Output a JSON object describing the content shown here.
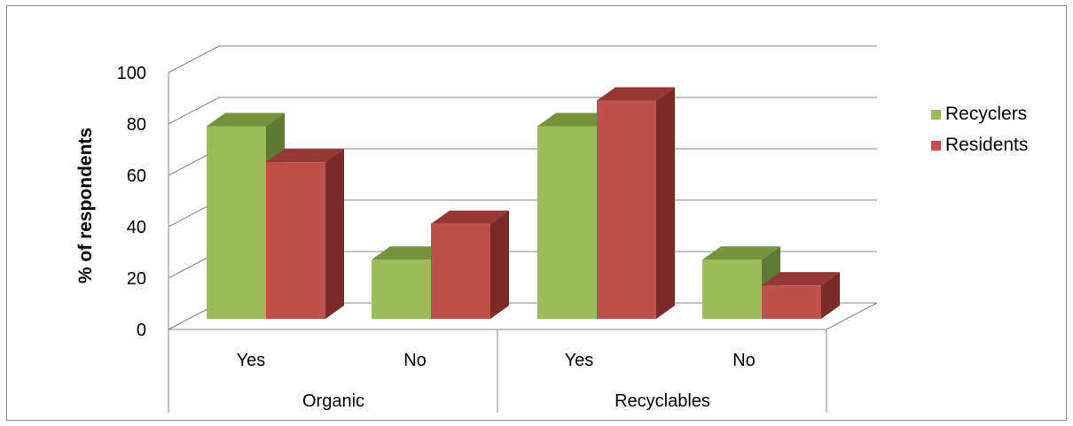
{
  "chart_data": {
    "type": "bar",
    "ylabel": "% of respondents",
    "ylim": [
      0,
      100
    ],
    "yticks": [
      "0",
      "20",
      "40",
      "60",
      "80",
      "100"
    ],
    "categories": [
      "Yes",
      "No",
      "Yes",
      "No"
    ],
    "groups": [
      {
        "label": "Organic",
        "categories": [
          "Yes",
          "No"
        ]
      },
      {
        "label": "Recyclables",
        "categories": [
          "Yes",
          "No"
        ]
      }
    ],
    "series": [
      {
        "name": "Recyclers",
        "values": [
          75,
          23,
          75,
          23
        ]
      },
      {
        "name": "Residents",
        "values": [
          61,
          37,
          85,
          13
        ]
      }
    ],
    "legend_position": "right",
    "grid": true
  },
  "colors": {
    "recyclers_front": "#9bbb59",
    "recyclers_top": "#76923c",
    "recyclers_side": "#5f7a30",
    "residents_front": "#c0504d",
    "residents_top": "#953734",
    "residents_side": "#7b2c2a",
    "grid": "#868686"
  }
}
